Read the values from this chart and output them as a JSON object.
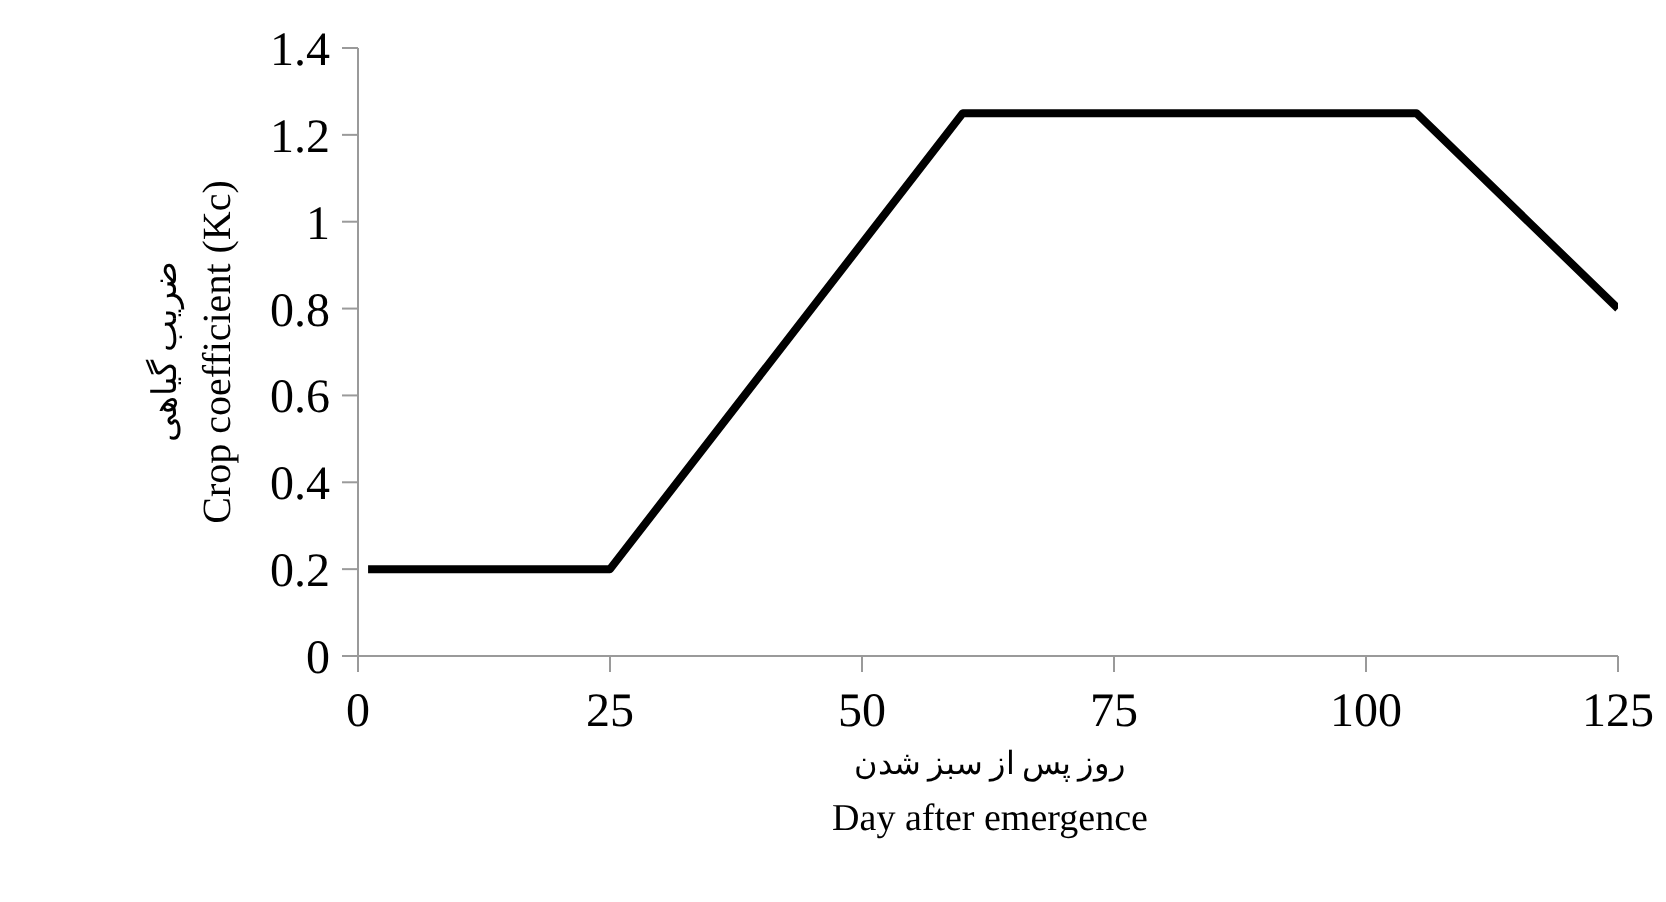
{
  "chart_data": {
    "type": "line",
    "xlabel": "روز پس از سبز شدن\nDay after emergence",
    "ylabel": "ضریب گیاهی\nCrop coefficient (Kc)",
    "x": [
      1,
      25,
      60,
      105,
      125
    ],
    "series": [
      {
        "color": "#000000",
        "values": [
          0.2,
          0.2,
          1.25,
          1.25,
          0.8
        ]
      }
    ],
    "xlim": [
      0,
      125
    ],
    "xticks": [
      0,
      25,
      50,
      75,
      100,
      125
    ],
    "ylim": [
      0,
      1.4
    ],
    "yticks": [
      0,
      0.2,
      0.4,
      0.6,
      0.8,
      1,
      1.2,
      1.4
    ],
    "grid": false,
    "marker": "none",
    "line_style": "solid"
  }
}
